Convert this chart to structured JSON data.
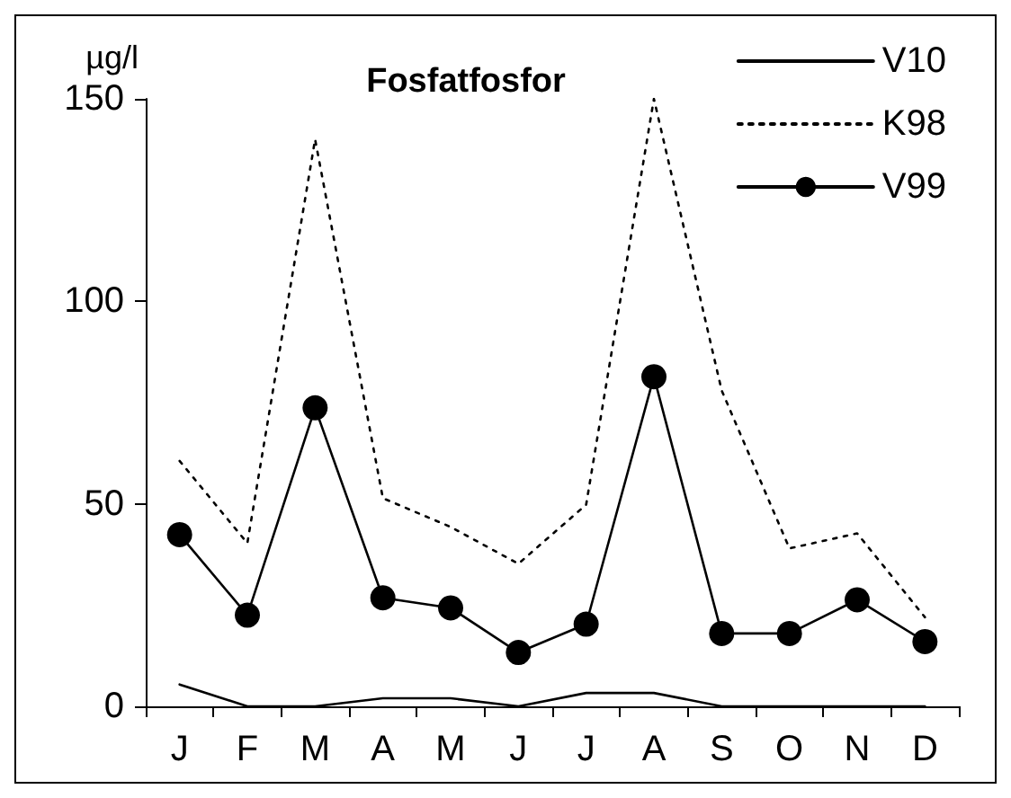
{
  "chart_data": {
    "type": "line",
    "title": "Fosfatfosfor",
    "ylabel": "µg/l",
    "categories": [
      "J",
      "F",
      "M",
      "A",
      "M",
      "J",
      "J",
      "A",
      "S",
      "O",
      "N",
      "D"
    ],
    "series": [
      {
        "name": "V10",
        "color": "#000000",
        "marker": "none",
        "line_style": "solid",
        "values": [
          5.4,
          0,
          0,
          2,
          2,
          0,
          3.3,
          3.3,
          0,
          0,
          0,
          0
        ]
      },
      {
        "name": "K98",
        "color": "#000000",
        "marker": "none",
        "line_style": "dotted",
        "values": [
          60.6,
          40.3,
          140,
          51.4,
          44.3,
          35.2,
          49.8,
          150,
          78,
          39,
          42.7,
          22
        ]
      },
      {
        "name": "V99",
        "color": "#000000",
        "marker": "circle",
        "line_style": "solid",
        "values": [
          42.4,
          22.5,
          73.7,
          26.8,
          24.3,
          13.3,
          20.3,
          81.4,
          18,
          18,
          26.3,
          16
        ]
      }
    ],
    "ylim": [
      0,
      150
    ],
    "yticks": [
      0,
      50,
      100,
      150
    ],
    "grid": false,
    "legend": "top right"
  }
}
